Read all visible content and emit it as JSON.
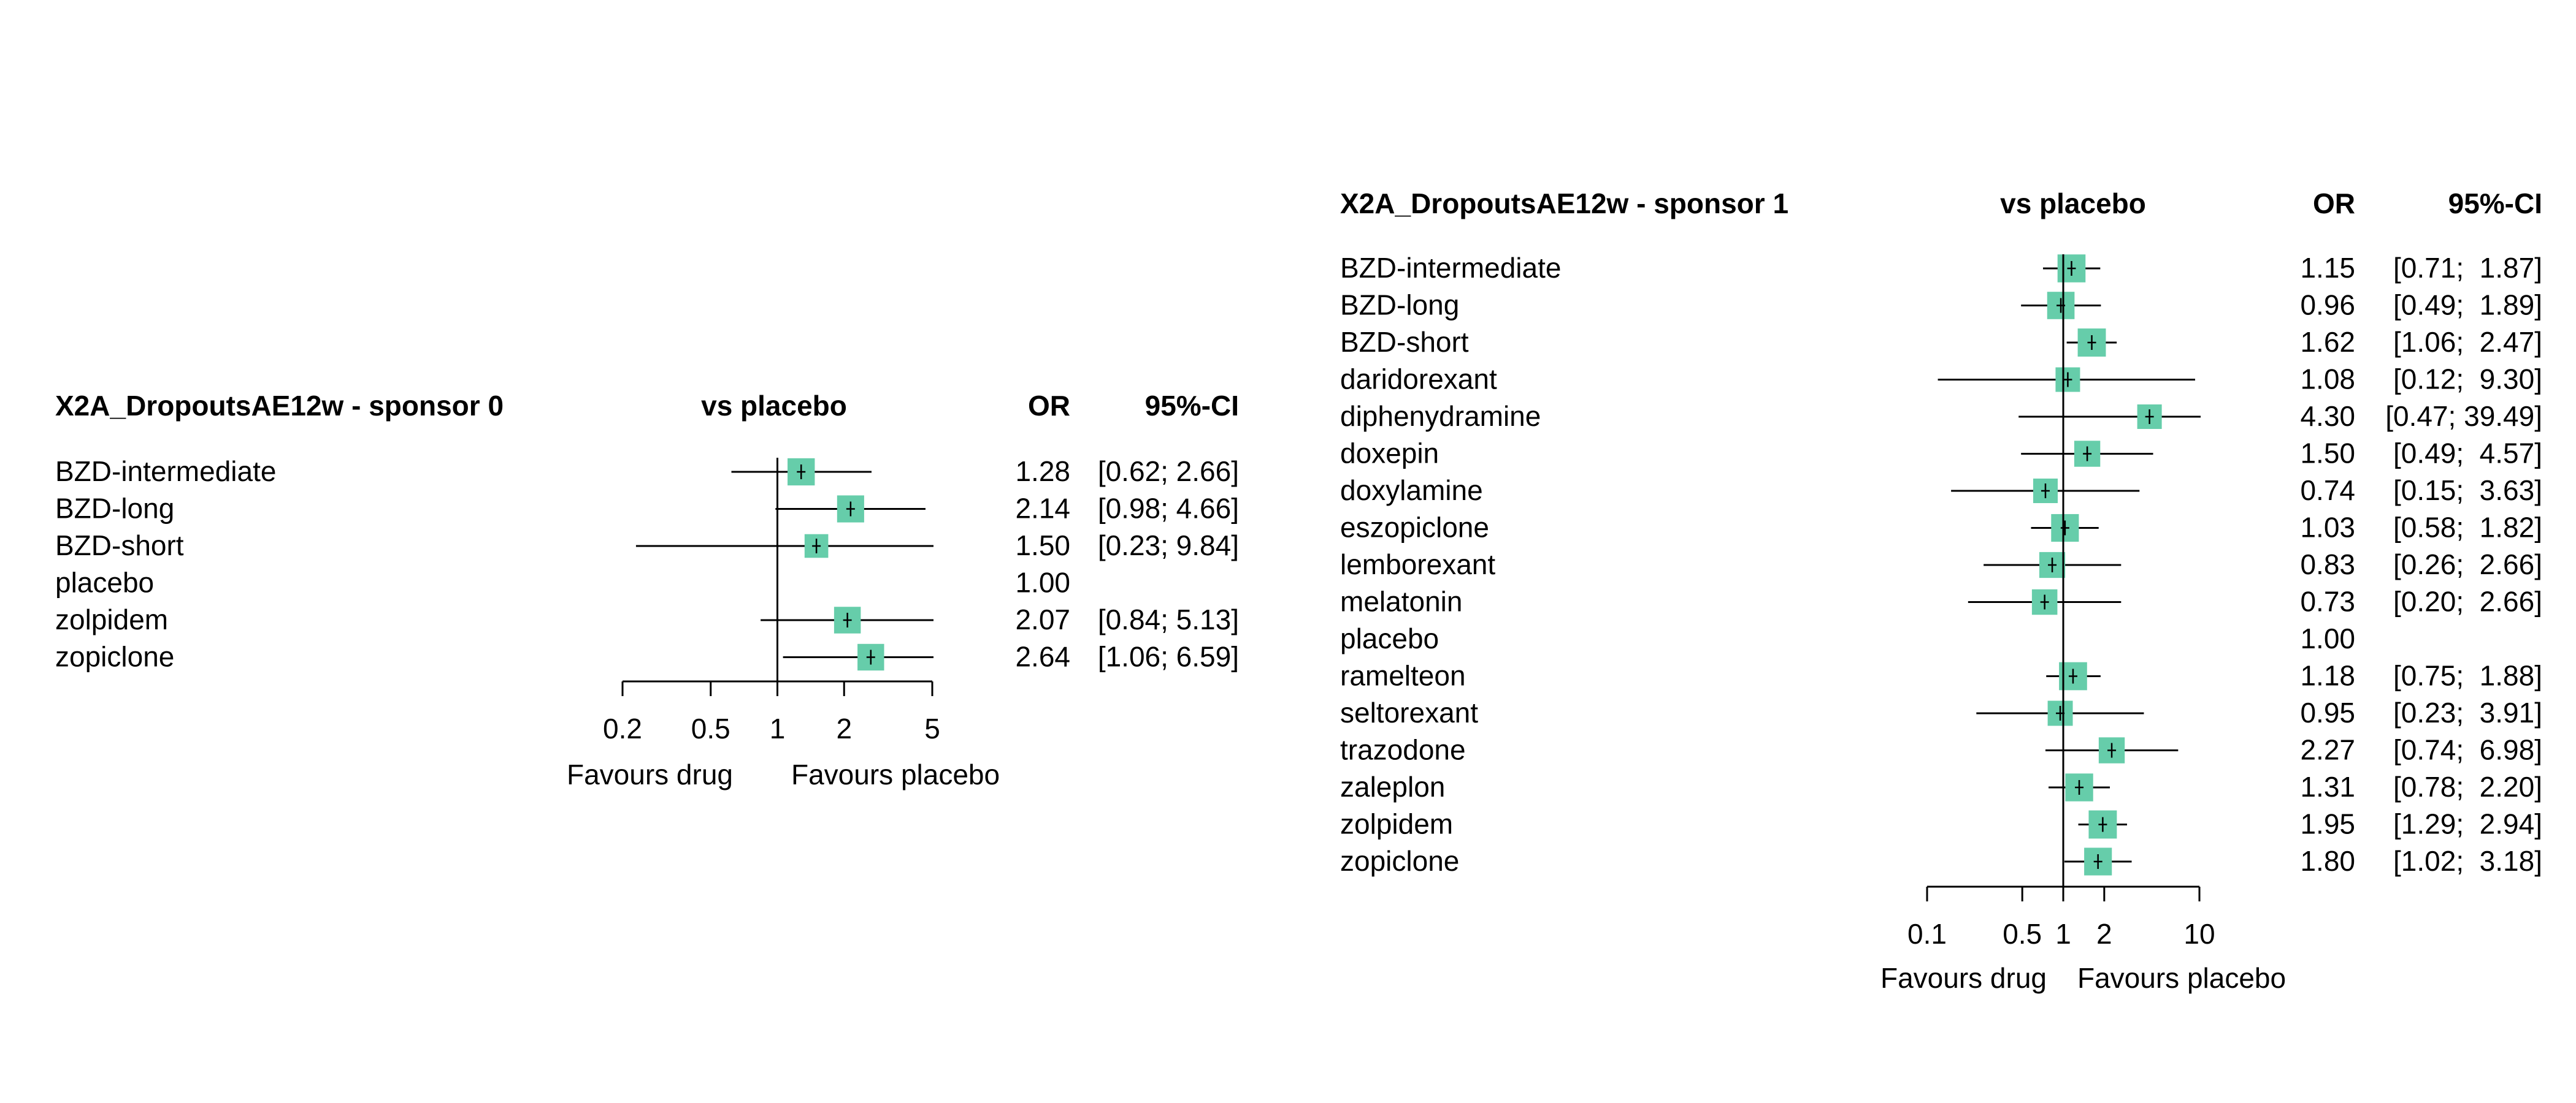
{
  "panels": [
    {
      "title": "X2A_DropoutsAE12w - sponsor 0",
      "col_compare": "vs placebo",
      "col_or": "OR",
      "col_ci": "95%-CI",
      "left_label": "Favours drug",
      "right_label": "Favours placebo"
    },
    {
      "title": "X2A_DropoutsAE12w - sponsor 1",
      "col_compare": "vs placebo",
      "col_or": "OR",
      "col_ci": "95%-CI",
      "left_label": "Favours drug",
      "right_label": "Favours placebo"
    }
  ],
  "colors": {
    "marker": "#66CDAA",
    "line": "#000000"
  },
  "chart_data": [
    {
      "type": "forest",
      "title": "X2A_DropoutsAE12w - sponsor 0",
      "xscale": "log",
      "xlim": [
        0.2,
        5
      ],
      "xticks": [
        "0.2",
        "0.5",
        "1",
        "2",
        "5"
      ],
      "reference": 1,
      "rows": [
        {
          "name": "BZD-intermediate",
          "or": 1.28,
          "lo": 0.62,
          "hi": 2.66,
          "or_text": "1.28",
          "ci_text": "[0.62; 2.66]"
        },
        {
          "name": "BZD-long",
          "or": 2.14,
          "lo": 0.98,
          "hi": 4.66,
          "or_text": "2.14",
          "ci_text": "[0.98; 4.66]"
        },
        {
          "name": "BZD-short",
          "or": 1.5,
          "lo": 0.23,
          "hi": 9.84,
          "or_text": "1.50",
          "ci_text": "[0.23; 9.84]"
        },
        {
          "name": "placebo",
          "or": 1.0,
          "lo": null,
          "hi": null,
          "or_text": "1.00",
          "ci_text": ""
        },
        {
          "name": "zolpidem",
          "or": 2.07,
          "lo": 0.84,
          "hi": 5.13,
          "or_text": "2.07",
          "ci_text": "[0.84; 5.13]"
        },
        {
          "name": "zopiclone",
          "or": 2.64,
          "lo": 1.06,
          "hi": 6.59,
          "or_text": "2.64",
          "ci_text": "[1.06; 6.59]"
        }
      ]
    },
    {
      "type": "forest",
      "title": "X2A_DropoutsAE12w - sponsor 1",
      "xscale": "log",
      "xlim": [
        0.1,
        10
      ],
      "xticks": [
        "0.1",
        "0.5",
        "1",
        "2",
        "10"
      ],
      "reference": 1,
      "rows": [
        {
          "name": "BZD-intermediate",
          "or": 1.15,
          "lo": 0.71,
          "hi": 1.87,
          "or_text": "1.15",
          "ci_text": "[0.71;  1.87]"
        },
        {
          "name": "BZD-long",
          "or": 0.96,
          "lo": 0.49,
          "hi": 1.89,
          "or_text": "0.96",
          "ci_text": "[0.49;  1.89]"
        },
        {
          "name": "BZD-short",
          "or": 1.62,
          "lo": 1.06,
          "hi": 2.47,
          "or_text": "1.62",
          "ci_text": "[1.06;  2.47]"
        },
        {
          "name": "daridorexant",
          "or": 1.08,
          "lo": 0.12,
          "hi": 9.3,
          "or_text": "1.08",
          "ci_text": "[0.12;  9.30]"
        },
        {
          "name": "diphenydramine",
          "or": 4.3,
          "lo": 0.47,
          "hi": 39.49,
          "or_text": "4.30",
          "ci_text": "[0.47; 39.49]"
        },
        {
          "name": "doxepin",
          "or": 1.5,
          "lo": 0.49,
          "hi": 4.57,
          "or_text": "1.50",
          "ci_text": "[0.49;  4.57]"
        },
        {
          "name": "doxylamine",
          "or": 0.74,
          "lo": 0.15,
          "hi": 3.63,
          "or_text": "0.74",
          "ci_text": "[0.15;  3.63]"
        },
        {
          "name": "eszopiclone",
          "or": 1.03,
          "lo": 0.58,
          "hi": 1.82,
          "or_text": "1.03",
          "ci_text": "[0.58;  1.82]"
        },
        {
          "name": "lemborexant",
          "or": 0.83,
          "lo": 0.26,
          "hi": 2.66,
          "or_text": "0.83",
          "ci_text": "[0.26;  2.66]"
        },
        {
          "name": "melatonin",
          "or": 0.73,
          "lo": 0.2,
          "hi": 2.66,
          "or_text": "0.73",
          "ci_text": "[0.20;  2.66]"
        },
        {
          "name": "placebo",
          "or": 1.0,
          "lo": null,
          "hi": null,
          "or_text": "1.00",
          "ci_text": ""
        },
        {
          "name": "ramelteon",
          "or": 1.18,
          "lo": 0.75,
          "hi": 1.88,
          "or_text": "1.18",
          "ci_text": "[0.75;  1.88]"
        },
        {
          "name": "seltorexant",
          "or": 0.95,
          "lo": 0.23,
          "hi": 3.91,
          "or_text": "0.95",
          "ci_text": "[0.23;  3.91]"
        },
        {
          "name": "trazodone",
          "or": 2.27,
          "lo": 0.74,
          "hi": 6.98,
          "or_text": "2.27",
          "ci_text": "[0.74;  6.98]"
        },
        {
          "name": "zaleplon",
          "or": 1.31,
          "lo": 0.78,
          "hi": 2.2,
          "or_text": "1.31",
          "ci_text": "[0.78;  2.20]"
        },
        {
          "name": "zolpidem",
          "or": 1.95,
          "lo": 1.29,
          "hi": 2.94,
          "or_text": "1.95",
          "ci_text": "[1.29;  2.94]"
        },
        {
          "name": "zopiclone",
          "or": 1.8,
          "lo": 1.02,
          "hi": 3.18,
          "or_text": "1.80",
          "ci_text": "[1.02;  3.18]"
        }
      ]
    }
  ]
}
